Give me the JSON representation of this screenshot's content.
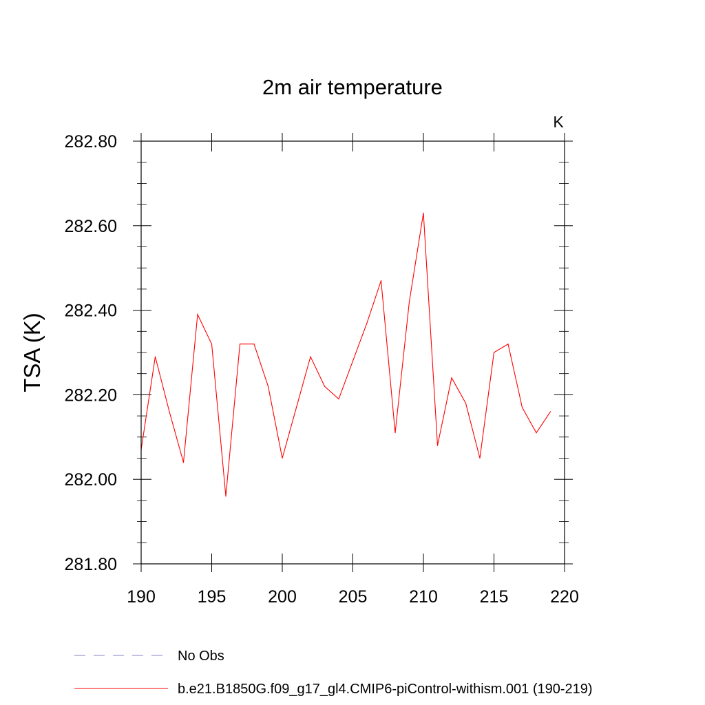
{
  "chart_data": {
    "type": "line",
    "title": "2m air temperature",
    "units_label": "K",
    "xlabel": "",
    "ylabel": "TSA  (K)",
    "xlim": [
      190,
      220
    ],
    "ylim": [
      281.8,
      282.8
    ],
    "x_ticks": [
      190,
      195,
      200,
      205,
      210,
      215,
      220
    ],
    "x_tick_labels": [
      "190",
      "195",
      "200",
      "205",
      "210",
      "215",
      "220"
    ],
    "y_ticks": [
      281.8,
      282.0,
      282.2,
      282.4,
      282.6,
      282.8
    ],
    "y_tick_labels": [
      "281.80",
      "282.00",
      "282.20",
      "282.40",
      "282.60",
      "282.80"
    ],
    "grid": false,
    "legend_placement": "bottom",
    "series": [
      {
        "name": "No Obs",
        "color": "#8080c0",
        "dash": "dashed",
        "x": [],
        "y": []
      },
      {
        "name": "b.e21.B1850G.f09_g17_gl4.CMIP6-piControl-withism.001 (190-219)",
        "color": "#ff0000",
        "dash": "solid",
        "x": [
          190,
          191,
          192,
          193,
          194,
          195,
          196,
          197,
          198,
          199,
          200,
          201,
          202,
          203,
          204,
          205,
          206,
          207,
          208,
          209,
          210,
          211,
          212,
          213,
          214,
          215,
          216,
          217,
          218,
          219
        ],
        "y": [
          282.07,
          282.29,
          282.16,
          282.04,
          282.39,
          282.32,
          281.96,
          282.32,
          282.32,
          282.22,
          282.05,
          282.17,
          282.29,
          282.22,
          282.19,
          282.28,
          282.37,
          282.47,
          282.11,
          282.42,
          282.63,
          282.08,
          282.24,
          282.18,
          282.05,
          282.3,
          282.32,
          282.17,
          282.11,
          282.16
        ]
      }
    ]
  }
}
